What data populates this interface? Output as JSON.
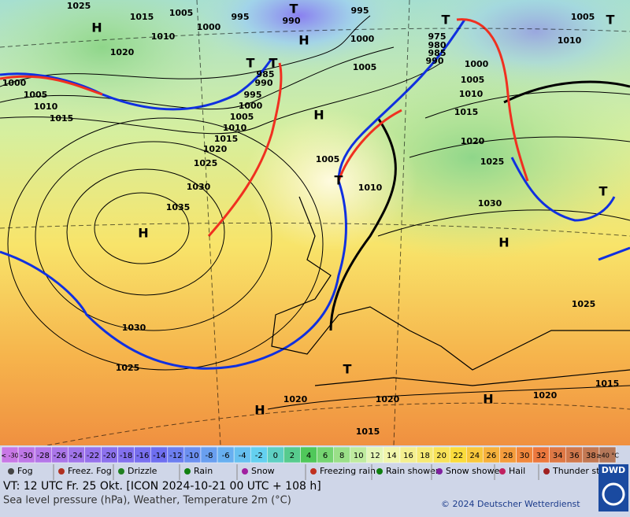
{
  "map": {
    "pressure_labels": [
      1025,
      1015,
      1005,
      995,
      990,
      995,
      1005,
      1010,
      1000,
      1020,
      1000,
      1005,
      1010,
      975,
      980,
      985,
      990,
      1000,
      1005,
      1010,
      1015,
      985,
      990,
      995,
      1000,
      1005,
      1010,
      1015,
      1020,
      1025,
      1030,
      1035,
      1000,
      1005,
      1010,
      1015,
      1020,
      1025,
      1030,
      1005,
      1010,
      1030,
      1025,
      1020,
      1020,
      1020,
      1025,
      1015,
      1015
    ],
    "centers": [
      "H",
      "H",
      "H",
      "H",
      "H",
      "H",
      "H",
      "T",
      "T",
      "T",
      "T",
      "T",
      "T",
      "T",
      "T"
    ]
  },
  "legend": {
    "scale_low": "< -30",
    "scale_ticks": [
      -30,
      -28,
      -26,
      -24,
      -22,
      -20,
      -18,
      -16,
      -14,
      -12,
      -10,
      -8,
      -6,
      -4,
      -2,
      0,
      2,
      4,
      6,
      8,
      10,
      12,
      14,
      16,
      18,
      20,
      22,
      24,
      26,
      28,
      30,
      32,
      34,
      36,
      38
    ],
    "scale_high": "≥40 °C",
    "weather": [
      "Fog",
      "Freez. Fog",
      "Drizzle",
      "Rain",
      "Snow",
      "Freezing rain",
      "Rain shower",
      "Snow shower",
      "Hail",
      "Thunder storm"
    ]
  },
  "footer": {
    "valid_time": "VT: 12 UTC Fr.  25 Okt. [ICON 2024-10-21  00 UTC + 108 h]",
    "subtitle": "Sea level pressure (hPa), Weather, Temperature 2m (°C)",
    "copyright": "© 2024 Deutscher Wetterdienst",
    "logo": "DWD"
  }
}
